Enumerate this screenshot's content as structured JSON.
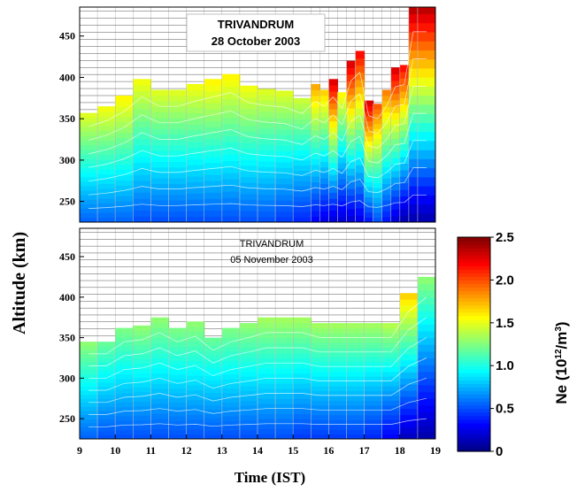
{
  "chart_data": [
    {
      "type": "heatmap",
      "title": "TRIVANDRUM",
      "subtitle": "28 October 2003",
      "xlabel": "",
      "ylabel": "Altitude (km)",
      "xlim": [
        9,
        19
      ],
      "ylim": [
        225,
        485
      ],
      "yticks": [
        250,
        300,
        350,
        400,
        450
      ],
      "time": [
        9,
        9.5,
        10,
        10.5,
        11,
        11.5,
        12,
        12.5,
        13,
        13.5,
        14,
        14.5,
        15,
        15.5,
        15.75,
        16,
        16.25,
        16.5,
        16.75,
        17,
        17.25,
        17.5,
        17.75,
        18,
        18.25,
        18.5
      ],
      "top_altitude_km": [
        357,
        365,
        378,
        398,
        385,
        385,
        392,
        398,
        404,
        390,
        386,
        384,
        375,
        392,
        385,
        398,
        382,
        420,
        432,
        372,
        368,
        385,
        412,
        415,
        488,
        488
      ],
      "ne_max_1e12_m3": [
        1.5,
        1.55,
        1.6,
        1.55,
        1.5,
        1.5,
        1.55,
        1.6,
        1.6,
        1.55,
        1.5,
        1.5,
        1.45,
        1.8,
        1.7,
        2.3,
        1.6,
        2.3,
        2.2,
        2.3,
        2.0,
        1.9,
        2.3,
        2.2,
        2.4,
        2.4
      ],
      "ne_min_1e12_m3": [
        0.55,
        0.55,
        0.55,
        0.5,
        0.5,
        0.5,
        0.5,
        0.5,
        0.5,
        0.5,
        0.5,
        0.45,
        0.4,
        0.3,
        0.25,
        0.2,
        0.2,
        0.2,
        0.25,
        0.35,
        0.5,
        0.35,
        0.2,
        0.1,
        0.1,
        0.1
      ]
    },
    {
      "type": "heatmap",
      "title": "TRIVANDRUM",
      "subtitle": "05 November 2003",
      "xlabel": "Time (IST)",
      "ylabel": "Altitude (km)",
      "xlim": [
        9,
        19
      ],
      "ylim": [
        225,
        485
      ],
      "xticks": [
        "9",
        "10",
        "11",
        "12",
        "13",
        "14",
        "15",
        "16",
        "17",
        "18",
        "19"
      ],
      "yticks": [
        250,
        300,
        350,
        400,
        450
      ],
      "time": [
        9,
        9.5,
        10,
        10.5,
        11,
        11.5,
        12,
        12.5,
        13,
        13.5,
        14,
        14.5,
        15,
        15.5,
        16,
        16.5,
        17,
        17.5,
        18,
        18.5
      ],
      "top_altitude_km": [
        345,
        345,
        362,
        365,
        375,
        362,
        370,
        350,
        362,
        368,
        375,
        375,
        375,
        368,
        368,
        368,
        368,
        368,
        405,
        425
      ],
      "ne_max_1e12_m3": [
        1.3,
        1.2,
        1.25,
        1.3,
        1.3,
        1.25,
        1.3,
        1.2,
        1.25,
        1.3,
        1.35,
        1.35,
        1.35,
        1.35,
        1.35,
        1.35,
        1.35,
        1.4,
        1.7,
        1.3
      ],
      "ne_min_1e12_m3": [
        0.55,
        0.5,
        0.5,
        0.5,
        0.5,
        0.5,
        0.5,
        0.5,
        0.5,
        0.5,
        0.5,
        0.5,
        0.45,
        0.45,
        0.45,
        0.45,
        0.4,
        0.3,
        0.15,
        0.1
      ]
    },
    {
      "type": "colorbar",
      "label": "Ne (10",
      "label_exponent": "12",
      "label_tail": "/m",
      "label_exponent2": "3",
      "label_close": ")",
      "range": [
        0,
        2.5
      ],
      "ticks": [
        "2.5",
        "2.0",
        "1.5",
        "1.0",
        "0.5",
        "0"
      ],
      "colormap": "jet"
    }
  ]
}
